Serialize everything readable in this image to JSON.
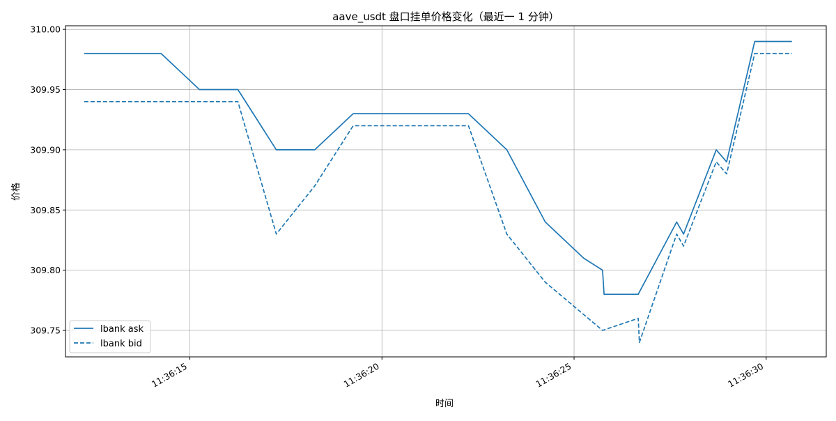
{
  "chart_data": {
    "type": "line",
    "title": "aave_usdt 盘口挂单价格变化（最近一 1 分钟）",
    "xlabel": "时间",
    "ylabel": "价格",
    "x_ticks": [
      "11:36:15",
      "11:36:20",
      "11:36:25",
      "11:36:30"
    ],
    "y_ticks": [
      "309.75",
      "309.80",
      "309.85",
      "309.90",
      "309.95",
      "310.00"
    ],
    "ylim": [
      309.728,
      310.003
    ],
    "xlim": [
      "11:36:11.763",
      "11:36:31.563"
    ],
    "grid": true,
    "legend_position": "lower-left",
    "series": [
      {
        "name": "lbank ask",
        "style": "solid",
        "color": "#1f77b4",
        "points": [
          [
            "11:36:12.25",
            309.98
          ],
          [
            "11:36:14.25",
            309.98
          ],
          [
            "11:36:15.25",
            309.95
          ],
          [
            "11:36:16.25",
            309.95
          ],
          [
            "11:36:17.25",
            309.9
          ],
          [
            "11:36:18.25",
            309.9
          ],
          [
            "11:36:19.25",
            309.93
          ],
          [
            "11:36:22.25",
            309.93
          ],
          [
            "11:36:23.25",
            309.9
          ],
          [
            "11:36:24.25",
            309.84
          ],
          [
            "11:36:25.25",
            309.81
          ],
          [
            "11:36:25.74",
            309.8
          ],
          [
            "11:36:25.78",
            309.78
          ],
          [
            "11:36:26.67",
            309.78
          ],
          [
            "11:36:27.67",
            309.84
          ],
          [
            "11:36:27.85",
            309.83
          ],
          [
            "11:36:28.70",
            309.9
          ],
          [
            "11:36:28.97",
            309.89
          ],
          [
            "11:36:29.70",
            309.99
          ],
          [
            "11:36:30.67",
            309.99
          ]
        ]
      },
      {
        "name": "lbank bid",
        "style": "dashed",
        "color": "#1f77b4",
        "points": [
          [
            "11:36:12.25",
            309.94
          ],
          [
            "11:36:16.25",
            309.94
          ],
          [
            "11:36:17.25",
            309.83
          ],
          [
            "11:36:18.25",
            309.87
          ],
          [
            "11:36:19.25",
            309.92
          ],
          [
            "11:36:22.25",
            309.92
          ],
          [
            "11:36:23.25",
            309.83
          ],
          [
            "11:36:24.25",
            309.79
          ],
          [
            "11:36:25.74",
            309.75
          ],
          [
            "11:36:26.67",
            309.76
          ],
          [
            "11:36:26.70",
            309.74
          ],
          [
            "11:36:27.67",
            309.83
          ],
          [
            "11:36:27.85",
            309.82
          ],
          [
            "11:36:28.70",
            309.89
          ],
          [
            "11:36:28.97",
            309.88
          ],
          [
            "11:36:29.70",
            309.98
          ],
          [
            "11:36:30.67",
            309.98
          ]
        ]
      }
    ]
  }
}
